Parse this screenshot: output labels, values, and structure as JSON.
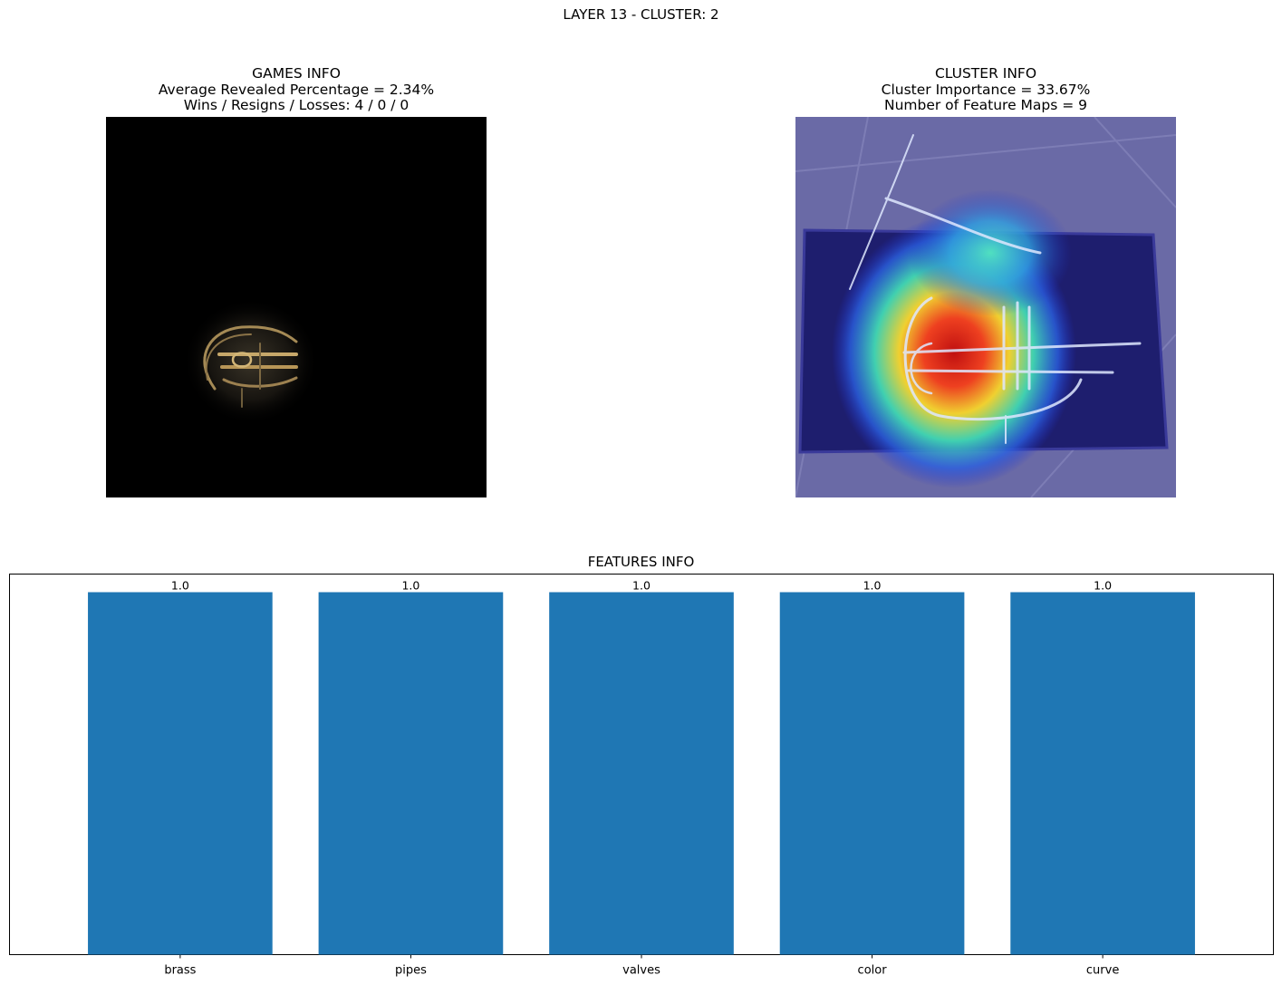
{
  "suptitle": "LAYER 13 - CLUSTER: 2",
  "games_info": {
    "title": "GAMES INFO",
    "line1": "Average Revealed Percentage = 2.34%",
    "line2": "Wins / Resigns / Losses: 4 / 0 / 0"
  },
  "cluster_info": {
    "title": "CLUSTER INFO",
    "line1": "Cluster Importance = 33.67%",
    "line2": "Number of Feature Maps = 9"
  },
  "chart_data": {
    "type": "bar",
    "title": "FEATURES INFO",
    "categories": [
      "brass",
      "pipes",
      "valves",
      "color",
      "curve"
    ],
    "values": [
      1.0,
      1.0,
      1.0,
      1.0,
      1.0
    ],
    "data_labels": [
      "1.0",
      "1.0",
      "1.0",
      "1.0",
      "1.0"
    ],
    "xlabel": "",
    "ylabel": "",
    "ylim": [
      0,
      1.05
    ],
    "bar_color": "#1f77b4",
    "grid": false,
    "y_axis_visible": false
  }
}
